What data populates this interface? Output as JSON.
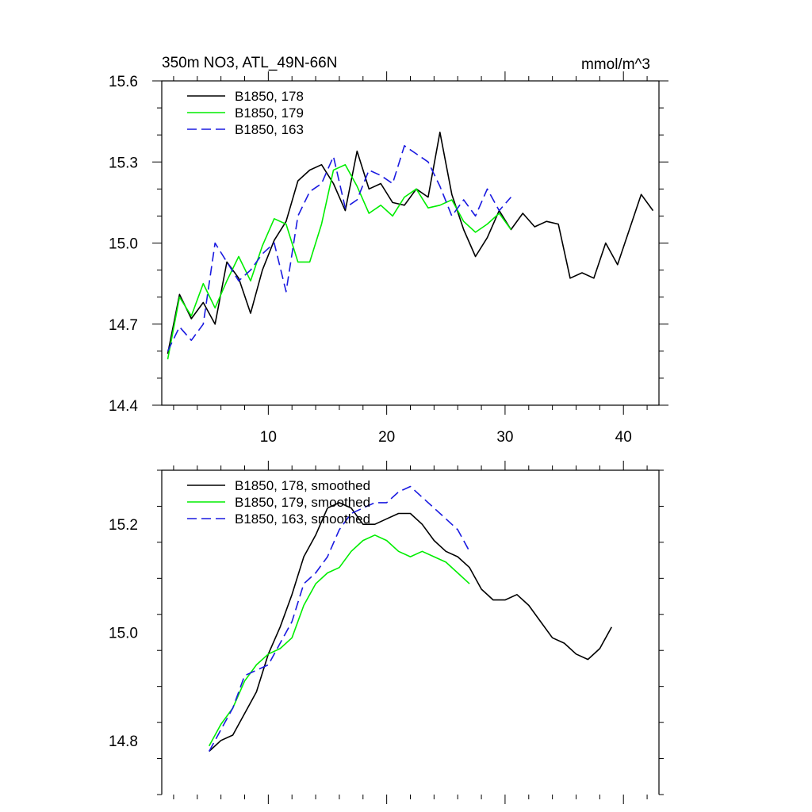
{
  "header": {
    "title": "350m NO3, ATL_49N-66N",
    "units": "mmol/m^3"
  },
  "colors": {
    "s178": "#000000",
    "s179": "#00ee00",
    "s163": "#1a1ae0"
  },
  "chart_data": [
    {
      "type": "line",
      "title": "350m NO3, ATL_49N-66N",
      "units": "mmol/m^3",
      "xlim": [
        1,
        43
      ],
      "ylim": [
        14.4,
        15.6
      ],
      "xticks": [
        10,
        20,
        30,
        40
      ],
      "xtick_labels": [
        "10",
        "20",
        "30",
        "40"
      ],
      "yticks": [
        14.4,
        14.7,
        15.0,
        15.3,
        15.6
      ],
      "ytick_labels": [
        "14.4",
        "14.7",
        "15.0",
        "15.3",
        "15.6"
      ],
      "legend_position": "top-left",
      "series": [
        {
          "name": "B1850, 178",
          "color_key": "s178",
          "dash": "solid",
          "x": [
            1.5,
            2.5,
            3.5,
            4.5,
            5.5,
            6.5,
            7.5,
            8.5,
            9.5,
            10.5,
            11.5,
            12.5,
            13.5,
            14.5,
            15.5,
            16.5,
            17.5,
            18.5,
            19.5,
            20.5,
            21.5,
            22.5,
            23.5,
            24.5,
            25.5,
            26.5,
            27.5,
            28.5,
            29.5,
            30.5,
            31.5,
            32.5,
            33.5,
            34.5,
            35.5,
            36.5,
            37.5,
            38.5,
            39.5,
            40.5,
            41.5,
            42.5
          ],
          "values": [
            14.59,
            14.81,
            14.72,
            14.78,
            14.7,
            14.93,
            14.87,
            14.74,
            14.9,
            15.01,
            15.08,
            15.23,
            15.27,
            15.29,
            15.22,
            15.12,
            15.34,
            15.2,
            15.22,
            15.15,
            15.14,
            15.2,
            15.17,
            15.41,
            15.18,
            15.05,
            14.95,
            15.02,
            15.12,
            15.05,
            15.11,
            15.06,
            15.08,
            15.07,
            14.87,
            14.89,
            14.87,
            15.0,
            14.92,
            15.05,
            15.18,
            15.12
          ]
        },
        {
          "name": "B1850, 179",
          "color_key": "s179",
          "dash": "solid",
          "x": [
            1.5,
            2.5,
            3.5,
            4.5,
            5.5,
            6.5,
            7.5,
            8.5,
            9.5,
            10.5,
            11.5,
            12.5,
            13.5,
            14.5,
            15.5,
            16.5,
            17.5,
            18.5,
            19.5,
            20.5,
            21.5,
            22.5,
            23.5,
            24.5,
            25.5,
            26.5,
            27.5,
            28.5,
            29.5,
            30.5
          ],
          "values": [
            14.57,
            14.8,
            14.73,
            14.85,
            14.76,
            14.86,
            14.95,
            14.86,
            14.99,
            15.09,
            15.07,
            14.93,
            14.93,
            15.07,
            15.27,
            15.29,
            15.21,
            15.11,
            15.14,
            15.1,
            15.17,
            15.2,
            15.13,
            15.14,
            15.16,
            15.08,
            15.04,
            15.07,
            15.11,
            15.05
          ]
        },
        {
          "name": "B1850, 163",
          "color_key": "s163",
          "dash": "dashed",
          "x": [
            1.5,
            2.5,
            3.5,
            4.5,
            5.5,
            6.5,
            7.5,
            8.5,
            9.5,
            10.5,
            11.5,
            12.5,
            13.5,
            14.5,
            15.5,
            16.5,
            17.5,
            18.5,
            19.5,
            20.5,
            21.5,
            22.5,
            23.5,
            24.5,
            25.5,
            26.5,
            27.5,
            28.5,
            29.5,
            30.5
          ],
          "values": [
            14.6,
            14.69,
            14.64,
            14.7,
            15.0,
            14.93,
            14.86,
            14.9,
            14.96,
            15.0,
            14.82,
            15.1,
            15.19,
            15.22,
            15.32,
            15.13,
            15.16,
            15.27,
            15.25,
            15.22,
            15.36,
            15.33,
            15.3,
            15.21,
            15.1,
            15.16,
            15.1,
            15.2,
            15.12,
            15.17
          ]
        }
      ]
    },
    {
      "type": "line",
      "title": "",
      "xlim": [
        1,
        43
      ],
      "ylim": [
        14.7,
        15.3
      ],
      "xticks": [
        10,
        20,
        30,
        40
      ],
      "yticks": [
        14.8,
        15.0,
        15.2
      ],
      "ytick_labels": [
        "14.8",
        "15.0",
        "15.2"
      ],
      "legend_position": "top-left",
      "series": [
        {
          "name": "B1850, 178, smoothed",
          "color_key": "s178",
          "dash": "solid",
          "x": [
            5,
            6,
            7,
            8,
            9,
            10,
            11,
            12,
            13,
            14,
            15,
            16,
            17,
            18,
            19,
            20,
            21,
            22,
            23,
            24,
            25,
            26,
            27,
            28,
            29,
            30,
            31,
            32,
            33,
            34,
            35,
            36,
            37,
            38,
            39
          ],
          "values": [
            14.78,
            14.8,
            14.81,
            14.85,
            14.89,
            14.96,
            15.01,
            15.07,
            15.14,
            15.18,
            15.23,
            15.24,
            15.23,
            15.2,
            15.2,
            15.21,
            15.22,
            15.22,
            15.2,
            15.17,
            15.15,
            15.14,
            15.12,
            15.08,
            15.06,
            15.06,
            15.07,
            15.05,
            15.02,
            14.99,
            14.98,
            14.96,
            14.95,
            14.97,
            15.01
          ]
        },
        {
          "name": "B1850, 179, smoothed",
          "color_key": "s179",
          "dash": "solid",
          "x": [
            5,
            6,
            7,
            8,
            9,
            10,
            11,
            12,
            13,
            14,
            15,
            16,
            17,
            18,
            19,
            20,
            21,
            22,
            23,
            24,
            25,
            26,
            27
          ],
          "values": [
            14.79,
            14.83,
            14.86,
            14.91,
            14.94,
            14.96,
            14.97,
            14.99,
            15.05,
            15.09,
            15.11,
            15.12,
            15.15,
            15.17,
            15.18,
            15.17,
            15.15,
            15.14,
            15.15,
            15.14,
            15.13,
            15.11,
            15.09
          ]
        },
        {
          "name": "B1850, 163, smoothed",
          "color_key": "s163",
          "dash": "dashed",
          "x": [
            5,
            6,
            7,
            8,
            9,
            10,
            11,
            12,
            13,
            14,
            15,
            16,
            17,
            18,
            19,
            20,
            21,
            22,
            23,
            24,
            25,
            26,
            27
          ],
          "values": [
            14.78,
            14.82,
            14.86,
            14.92,
            14.93,
            14.94,
            14.98,
            15.02,
            15.09,
            15.11,
            15.14,
            15.19,
            15.22,
            15.23,
            15.24,
            15.24,
            15.26,
            15.27,
            15.25,
            15.23,
            15.21,
            15.19,
            15.15
          ]
        }
      ]
    }
  ]
}
